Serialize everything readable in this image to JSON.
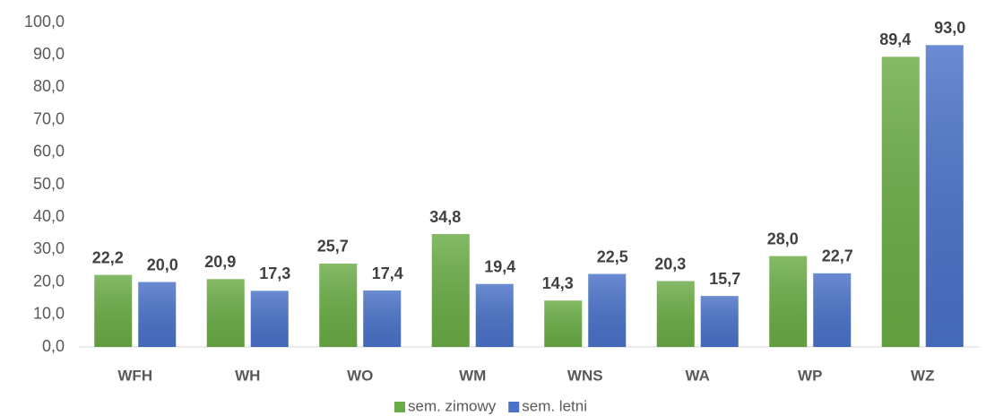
{
  "chart_data": {
    "type": "bar",
    "categories": [
      "WFH",
      "WH",
      "WO",
      "WM",
      "WNS",
      "WA",
      "WP",
      "WZ"
    ],
    "series": [
      {
        "name": "sem. zimowy",
        "color": "#6aac45",
        "values": [
          22.2,
          20.9,
          25.7,
          34.8,
          14.3,
          20.3,
          28.0,
          89.4
        ],
        "value_labels": [
          "22,2",
          "20,9",
          "25,7",
          "34,8",
          "14,3",
          "20,3",
          "28,0",
          "89,4"
        ]
      },
      {
        "name": "sem. letni",
        "color": "#4a72c8",
        "values": [
          20.0,
          17.3,
          17.4,
          19.4,
          22.5,
          15.7,
          22.7,
          93.0
        ],
        "value_labels": [
          "20,0",
          "17,3",
          "17,4",
          "19,4",
          "22,5",
          "15,7",
          "22,7",
          "93,0"
        ]
      }
    ],
    "ylim": [
      0,
      100
    ],
    "yticks": [
      {
        "value": 0,
        "label": "0,0"
      },
      {
        "value": 10,
        "label": "10,0"
      },
      {
        "value": 20,
        "label": "20,0"
      },
      {
        "value": 30,
        "label": "30,0"
      },
      {
        "value": 40,
        "label": "40,0"
      },
      {
        "value": 50,
        "label": "50,0"
      },
      {
        "value": 60,
        "label": "60,0"
      },
      {
        "value": 70,
        "label": "70,0"
      },
      {
        "value": 80,
        "label": "80,0"
      },
      {
        "value": 90,
        "label": "90,0"
      },
      {
        "value": 100,
        "label": "100,0"
      }
    ],
    "grid": false,
    "legend": "bottom"
  }
}
